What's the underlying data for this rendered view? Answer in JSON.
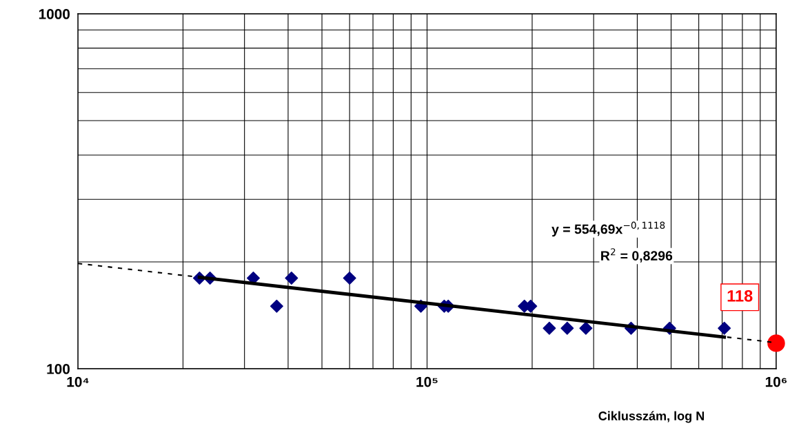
{
  "chart_data": {
    "type": "scatter",
    "log": "xy",
    "grid": true,
    "xlabel": "Ciklusszám, log N",
    "xlim": [
      10000,
      1000000
    ],
    "xticks": [
      {
        "value": 10000,
        "label": "10⁴"
      },
      {
        "value": 20000,
        "label": null
      },
      {
        "value": 30000,
        "label": null
      },
      {
        "value": 40000,
        "label": null
      },
      {
        "value": 50000,
        "label": null
      },
      {
        "value": 60000,
        "label": null
      },
      {
        "value": 70000,
        "label": null
      },
      {
        "value": 80000,
        "label": null
      },
      {
        "value": 90000,
        "label": null
      },
      {
        "value": 100000,
        "label": "10⁵"
      },
      {
        "value": 200000,
        "label": null
      },
      {
        "value": 300000,
        "label": null
      },
      {
        "value": 400000,
        "label": null
      },
      {
        "value": 500000,
        "label": null
      },
      {
        "value": 600000,
        "label": null
      },
      {
        "value": 700000,
        "label": null
      },
      {
        "value": 800000,
        "label": null
      },
      {
        "value": 900000,
        "label": null
      },
      {
        "value": 1000000,
        "label": "10⁶"
      }
    ],
    "ylim": [
      100,
      1000
    ],
    "yticks": [
      100,
      {
        "value": 200,
        "label": null
      },
      {
        "value": 300,
        "label": null
      },
      {
        "value": 400,
        "label": null
      },
      {
        "value": 500,
        "label": null
      },
      {
        "value": 600,
        "label": null
      },
      {
        "value": 700,
        "label": null
      },
      {
        "value": 800,
        "label": null
      },
      {
        "value": 900,
        "label": null
      },
      1000
    ],
    "annotations": [
      "y = 554,69x$^{−0,1118}$",
      "R$^{2}$ = 0,8296"
    ],
    "series": [
      {
        "type": "line",
        "color": "#000000",
        "line_style": "dashed",
        "marker": "none",
        "x": [
          10000,
          1000000
        ],
        "values": [
          198,
          118.4
        ]
      },
      {
        "type": "line",
        "color": "#000000",
        "line_style": "solid",
        "marker": "none",
        "x": [
          22300,
          710000
        ],
        "values": [
          181,
          122.8
        ]
      },
      {
        "color": "#000080",
        "marker": "diamond",
        "x": [
          22300,
          23900,
          31800,
          37100,
          40900,
          60000,
          96000,
          112000,
          115000,
          190000,
          198000,
          224000,
          252000,
          285000,
          384000,
          495000,
          710000
        ],
        "values": [
          180,
          180,
          180,
          150,
          180,
          180,
          150,
          150,
          150,
          150,
          150,
          130,
          130,
          130,
          130,
          130,
          130
        ]
      },
      {
        "type": "scatter",
        "color": "#ff0000",
        "marker": "circle",
        "x": [
          1000000
        ],
        "values": [
          118
        ],
        "value_labels": [
          "118"
        ]
      }
    ]
  }
}
